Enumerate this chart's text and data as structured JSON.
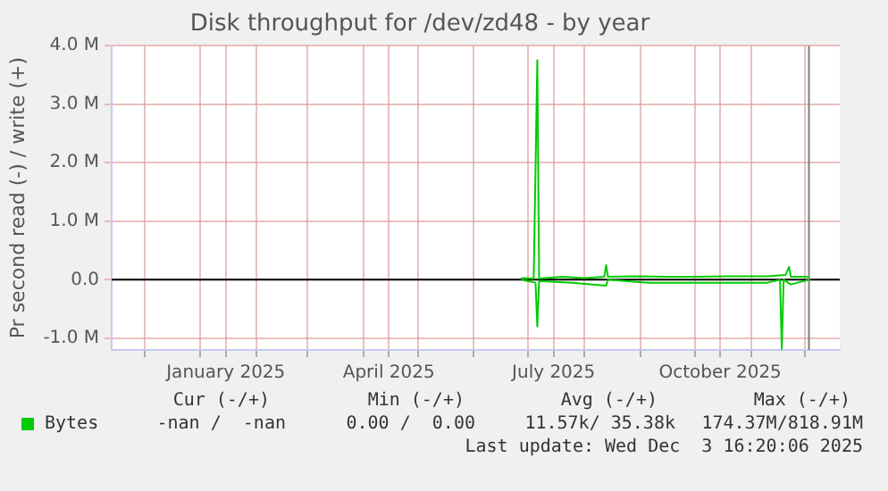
{
  "chart_data": {
    "type": "line",
    "title": "Disk throughput for /dev/zd48 - by year",
    "ylabel": "Pr second read (-) / write (+)",
    "series": [
      {
        "name": "Bytes",
        "color": "#00cc00",
        "x": [
          "2025-06-27",
          "2025-07-04",
          "2025-07-06",
          "2025-07-07",
          "2025-07-20",
          "2025-08-01",
          "2025-08-12",
          "2025-08-13",
          "2025-08-14",
          "2025-08-30",
          "2025-09-15",
          "2025-10-01",
          "2025-10-20",
          "2025-11-10",
          "2025-11-20",
          "2025-11-22",
          "2025-11-23",
          "2025-12-03"
        ],
        "values": [
          30000,
          20000,
          3750000,
          20000,
          50000,
          30000,
          50000,
          250000,
          50000,
          60000,
          50000,
          50000,
          60000,
          60000,
          80000,
          220000,
          50000,
          50000
        ]
      },
      {
        "color": "#00cc00",
        "x": [
          "2025-06-27",
          "2025-07-05",
          "2025-07-06",
          "2025-07-07",
          "2025-07-25",
          "2025-08-13",
          "2025-08-14",
          "2025-09-05",
          "2025-09-30",
          "2025-10-20",
          "2025-11-10",
          "2025-11-17",
          "2025-11-18",
          "2025-11-19",
          "2025-11-23",
          "2025-12-03"
        ],
        "values": [
          0,
          -50000,
          -800000,
          -20000,
          -50000,
          -100000,
          0,
          -50000,
          -50000,
          -50000,
          -50000,
          0,
          -1180000,
          0,
          -80000,
          0
        ]
      }
    ],
    "xlim": [
      "2024-11-13",
      "2025-12-20"
    ],
    "xticks": [
      {
        "value": "2024-12-01",
        "label": null
      },
      {
        "value": "2025-01-01",
        "label": null
      },
      {
        "value": "2025-01-15",
        "label": "January 2025"
      },
      {
        "value": "2025-02-01",
        "label": null
      },
      {
        "value": "2025-03-01",
        "label": null
      },
      {
        "value": "2025-04-01",
        "label": null
      },
      {
        "value": "2025-04-15",
        "label": "April 2025"
      },
      {
        "value": "2025-05-01",
        "label": null
      },
      {
        "value": "2025-06-01",
        "label": null
      },
      {
        "value": "2025-07-01",
        "label": null
      },
      {
        "value": "2025-07-15",
        "label": "July 2025"
      },
      {
        "value": "2025-08-01",
        "label": null
      },
      {
        "value": "2025-09-01",
        "label": null
      },
      {
        "value": "2025-10-01",
        "label": null
      },
      {
        "value": "2025-10-15",
        "label": "October 2025"
      },
      {
        "value": "2025-11-01",
        "label": null
      },
      {
        "value": "2025-12-01",
        "label": null
      }
    ],
    "ylim": [
      -1200000,
      4000000
    ],
    "yticks": [
      {
        "value": -1000000,
        "label": "-1.0 M"
      },
      {
        "value": 0,
        "label": "0.0"
      },
      {
        "value": 1000000,
        "label": "1.0 M"
      },
      {
        "value": 2000000,
        "label": "2.0 M"
      },
      {
        "value": 3000000,
        "label": "3.0 M"
      },
      {
        "value": 4000000,
        "label": "4.0 M"
      }
    ],
    "grid": true,
    "legend": "bottom left",
    "marker": "none",
    "line_style": "solid",
    "ref_lines": [
      {
        "axis": "y",
        "value": 0,
        "color": "#000000"
      },
      {
        "axis": "x",
        "value": "2025-12-03",
        "color": "#7f7f7f"
      }
    ],
    "annotations": [
      "Cur (-/+)",
      "Min (-/+)",
      "Avg (-/+)",
      "Max (-/+)",
      "-nan /  -nan",
      "0.00 /  0.00",
      "11.57k/ 35.38k",
      "174.37M/818.91M",
      "Last update: Wed Dec  3 16:20:06 2025"
    ]
  }
}
